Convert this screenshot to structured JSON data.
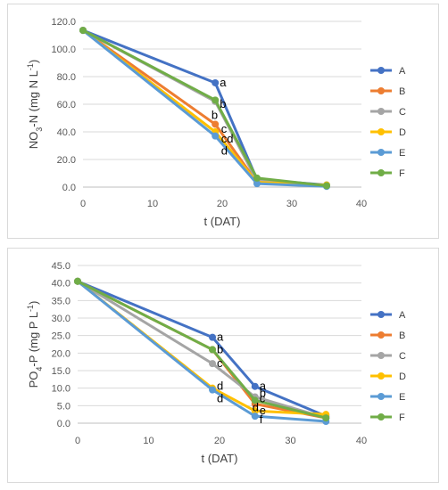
{
  "chart_data": [
    {
      "type": "line",
      "xlabel": "t (DAT)",
      "ylabel_parts": [
        "NO",
        "3",
        "-N (mg N L",
        "-1",
        ")"
      ],
      "xlim": [
        0,
        40
      ],
      "ylim": [
        0,
        120
      ],
      "xticks": [
        "0",
        "10",
        "20",
        "30",
        "40"
      ],
      "yticks": [
        "0.0",
        "20.0",
        "40.0",
        "60.0",
        "80.0",
        "100.0",
        "120.0"
      ],
      "grid": "horizontal",
      "legend_position": "right",
      "series": [
        {
          "name": "A",
          "color": "#4472c4",
          "points": [
            [
              0,
              113.5
            ],
            [
              19,
              75.5
            ],
            [
              25,
              5.5
            ],
            [
              35,
              1.5
            ]
          ]
        },
        {
          "name": "B",
          "color": "#ed7d31",
          "points": [
            [
              0,
              113.5
            ],
            [
              19,
              45.5
            ],
            [
              25,
              3.5
            ],
            [
              35,
              1.0
            ]
          ]
        },
        {
          "name": "C",
          "color": "#a5a5a5",
          "points": [
            [
              0,
              113.5
            ],
            [
              19,
              62.0
            ],
            [
              25,
              4.5
            ],
            [
              35,
              1.0
            ]
          ]
        },
        {
          "name": "D",
          "color": "#ffc000",
          "points": [
            [
              0,
              113.5
            ],
            [
              19,
              40.0
            ],
            [
              25,
              3.5
            ],
            [
              35,
              1.5
            ]
          ]
        },
        {
          "name": "E",
          "color": "#5b9bd5",
          "points": [
            [
              0,
              113.5
            ],
            [
              19,
              37.0
            ],
            [
              25,
              2.5
            ],
            [
              35,
              0.5
            ]
          ]
        },
        {
          "name": "F",
          "color": "#70ad47",
          "points": [
            [
              0,
              113.5
            ],
            [
              19,
              63.0
            ],
            [
              25,
              6.5
            ],
            [
              35,
              1.0
            ]
          ]
        }
      ],
      "annotations": [
        {
          "text": "a",
          "x": 19,
          "y": 75.5
        },
        {
          "text": "b",
          "x": 19,
          "y": 60.0
        },
        {
          "text": "b",
          "x": 17.8,
          "y": 52.0
        },
        {
          "text": "c",
          "x": 19.2,
          "y": 42.0
        },
        {
          "text": "cd",
          "x": 19.2,
          "y": 35.0
        },
        {
          "text": "d",
          "x": 19.2,
          "y": 26.0
        }
      ]
    },
    {
      "type": "line",
      "xlabel": "t (DAT)",
      "ylabel_parts": [
        "PO",
        "4",
        "-P (mg P L",
        "-1",
        ")"
      ],
      "xlim": [
        0,
        40
      ],
      "ylim": [
        0,
        45
      ],
      "xticks": [
        "0",
        "10",
        "20",
        "30",
        "40"
      ],
      "yticks": [
        "0.0",
        "5.0",
        "10.0",
        "15.0",
        "20.0",
        "25.0",
        "30.0",
        "35.0",
        "40.0",
        "45.0"
      ],
      "grid": "horizontal",
      "legend_position": "right",
      "series": [
        {
          "name": "A",
          "color": "#4472c4",
          "points": [
            [
              0,
              40.5
            ],
            [
              19,
              24.5
            ],
            [
              25,
              10.5
            ],
            [
              35,
              2.0
            ]
          ]
        },
        {
          "name": "B",
          "color": "#ed7d31",
          "points": [
            [
              0,
              40.5
            ],
            [
              19,
              21.0
            ],
            [
              25,
              5.5
            ],
            [
              35,
              1.5
            ]
          ]
        },
        {
          "name": "C",
          "color": "#a5a5a5",
          "points": [
            [
              0,
              40.5
            ],
            [
              19,
              17.0
            ],
            [
              25,
              7.5
            ],
            [
              35,
              1.5
            ]
          ]
        },
        {
          "name": "D",
          "color": "#ffc000",
          "points": [
            [
              0,
              40.5
            ],
            [
              19,
              10.0
            ],
            [
              25,
              3.5
            ],
            [
              35,
              2.5
            ]
          ]
        },
        {
          "name": "E",
          "color": "#5b9bd5",
          "points": [
            [
              0,
              40.5
            ],
            [
              19,
              9.5
            ],
            [
              25,
              2.0
            ],
            [
              35,
              0.5
            ]
          ]
        },
        {
          "name": "F",
          "color": "#70ad47",
          "points": [
            [
              0,
              40.5
            ],
            [
              19,
              21.0
            ],
            [
              25,
              6.5
            ],
            [
              35,
              1.5
            ]
          ]
        }
      ],
      "annotations": [
        {
          "text": "a",
          "x": 19,
          "y": 24.5
        },
        {
          "text": "b",
          "x": 19,
          "y": 21.0
        },
        {
          "text": "c",
          "x": 19,
          "y": 17.0
        },
        {
          "text": "d",
          "x": 19,
          "y": 10.5
        },
        {
          "text": "d",
          "x": 19,
          "y": 7.0
        },
        {
          "text": "a",
          "x": 25,
          "y": 10.5
        },
        {
          "text": "b",
          "x": 25,
          "y": 8.5
        },
        {
          "text": "c",
          "x": 25,
          "y": 7.0
        },
        {
          "text": "d",
          "x": 24.0,
          "y": 4.5
        },
        {
          "text": "e",
          "x": 25,
          "y": 3.5
        },
        {
          "text": "f",
          "x": 25,
          "y": 1.0
        }
      ]
    }
  ]
}
